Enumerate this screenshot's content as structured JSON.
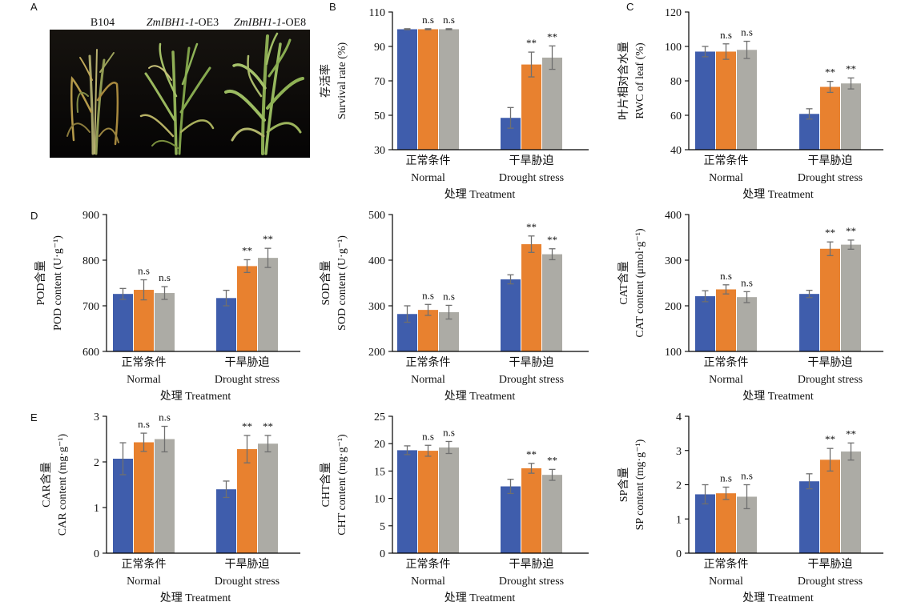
{
  "panel_labels": [
    "A",
    "B",
    "C",
    "D",
    "E"
  ],
  "photo_labels": [
    {
      "plain": "B104"
    },
    {
      "italic": "ZmIBH1-1",
      "plain": "-OE3"
    },
    {
      "italic": "ZmIBH1-1",
      "plain": "-OE8"
    }
  ],
  "colors": {
    "series": [
      "#3f5dac",
      "#e8812f",
      "#acaba5"
    ],
    "error_bar": "#6f6f6f",
    "axis": "#000000"
  },
  "chart_data": [
    {
      "type": "bar",
      "ylabel_zh": "存活率",
      "ylabel_en": "Survival rate (%)",
      "xlabel": "处理 Treatment",
      "categories": [
        {
          "zh": "正常条件",
          "en": "Normal"
        },
        {
          "zh": "干旱胁迫",
          "en": "Drought stress"
        }
      ],
      "ylim": [
        30,
        110
      ],
      "yticks": [
        30,
        50,
        70,
        90,
        110
      ],
      "series": [
        {
          "values": [
            100,
            48.5
          ],
          "errors": [
            0.3,
            6
          ]
        },
        {
          "values": [
            100,
            79.5
          ],
          "errors": [
            0.3,
            7.2
          ],
          "significance": [
            "n.s",
            "**"
          ]
        },
        {
          "values": [
            100,
            83.5
          ],
          "errors": [
            0.3,
            6.8
          ],
          "significance": [
            "n.s",
            "**"
          ]
        }
      ]
    },
    {
      "type": "bar",
      "ylabel_zh": "叶片相对含水量",
      "ylabel_en": "RWC of leaf (%)",
      "xlabel": "处理 Treatment",
      "categories": [
        {
          "zh": "正常条件",
          "en": "Normal"
        },
        {
          "zh": "干旱胁迫",
          "en": "Drought stress"
        }
      ],
      "ylim": [
        40,
        120
      ],
      "yticks": [
        40,
        60,
        80,
        100,
        120
      ],
      "series": [
        {
          "values": [
            97,
            60.8
          ],
          "errors": [
            3,
            3
          ]
        },
        {
          "values": [
            97,
            76.5
          ],
          "errors": [
            4.5,
            3.2
          ],
          "significance": [
            "n.s",
            "**"
          ]
        },
        {
          "values": [
            98,
            78.5
          ],
          "errors": [
            5,
            3.2
          ],
          "significance": [
            "n.s",
            "**"
          ]
        }
      ]
    },
    {
      "type": "bar",
      "ylabel_zh": "POD含量",
      "ylabel_en": "POD content (U·g⁻¹)",
      "xlabel": "处理 Treatment",
      "categories": [
        {
          "zh": "正常条件",
          "en": "Normal"
        },
        {
          "zh": "干旱胁迫",
          "en": "Drought stress"
        }
      ],
      "ylim": [
        600,
        900
      ],
      "yticks": [
        600,
        700,
        800,
        900
      ],
      "series": [
        {
          "values": [
            726,
            717
          ],
          "errors": [
            12,
            17
          ]
        },
        {
          "values": [
            735,
            787
          ],
          "errors": [
            22,
            14
          ],
          "significance": [
            "n.s",
            "**"
          ]
        },
        {
          "values": [
            728,
            805
          ],
          "errors": [
            14,
            21
          ],
          "significance": [
            "n.s",
            "**"
          ]
        }
      ]
    },
    {
      "type": "bar",
      "ylabel_zh": "SOD含量",
      "ylabel_en": "SOD content (U·g⁻¹)",
      "xlabel": "处理 Treatment",
      "categories": [
        {
          "zh": "正常条件",
          "en": "Normal"
        },
        {
          "zh": "干旱胁迫",
          "en": "Drought stress"
        }
      ],
      "ylim": [
        200,
        500
      ],
      "yticks": [
        200,
        300,
        400,
        500
      ],
      "series": [
        {
          "values": [
            282,
            358
          ],
          "errors": [
            18,
            10
          ]
        },
        {
          "values": [
            291,
            435
          ],
          "errors": [
            12,
            18
          ],
          "significance": [
            "n.s",
            "**"
          ]
        },
        {
          "values": [
            286,
            413
          ],
          "errors": [
            15,
            12
          ],
          "significance": [
            "n.s",
            "**"
          ]
        }
      ]
    },
    {
      "type": "bar",
      "ylabel_zh": "CAT含量",
      "ylabel_en": "CAT content (μmol·g⁻¹)",
      "xlabel": "处理 Treatment",
      "categories": [
        {
          "zh": "正常条件",
          "en": "Normal"
        },
        {
          "zh": "干旱胁迫",
          "en": "Drought stress"
        }
      ],
      "ylim": [
        100,
        400
      ],
      "yticks": [
        100,
        200,
        300,
        400
      ],
      "series": [
        {
          "values": [
            221,
            226
          ],
          "errors": [
            12,
            8
          ]
        },
        {
          "values": [
            236,
            325
          ],
          "errors": [
            10,
            15
          ],
          "significance": [
            "n.s",
            "**"
          ]
        },
        {
          "values": [
            219,
            334
          ],
          "errors": [
            12,
            10
          ],
          "significance": [
            "n.s",
            "**"
          ]
        }
      ]
    },
    {
      "type": "bar",
      "ylabel_zh": "CAR含量",
      "ylabel_en": "CAR content (mg·g⁻¹)",
      "xlabel": "处理 Treatment",
      "categories": [
        {
          "zh": "正常条件",
          "en": "Normal"
        },
        {
          "zh": "干旱胁迫",
          "en": "Drought stress"
        }
      ],
      "ylim": [
        0,
        3
      ],
      "yticks": [
        0,
        1,
        2,
        3
      ],
      "series": [
        {
          "values": [
            2.07,
            1.4
          ],
          "errors": [
            0.35,
            0.18
          ]
        },
        {
          "values": [
            2.43,
            2.28
          ],
          "errors": [
            0.2,
            0.3
          ],
          "significance": [
            "n.s",
            "**"
          ]
        },
        {
          "values": [
            2.5,
            2.4
          ],
          "errors": [
            0.28,
            0.18
          ],
          "significance": [
            "n.s",
            "**"
          ]
        }
      ]
    },
    {
      "type": "bar",
      "ylabel_zh": "CHT含量",
      "ylabel_en": "CHT content (mg·g⁻¹)",
      "xlabel": "处理 Treatment",
      "categories": [
        {
          "zh": "正常条件",
          "en": "Normal"
        },
        {
          "zh": "干旱胁迫",
          "en": "Drought stress"
        }
      ],
      "ylim": [
        0,
        25
      ],
      "yticks": [
        0,
        5,
        10,
        15,
        20,
        25
      ],
      "series": [
        {
          "values": [
            18.8,
            12.2
          ],
          "errors": [
            0.8,
            1.3
          ]
        },
        {
          "values": [
            18.7,
            15.5
          ],
          "errors": [
            1.0,
            0.9
          ],
          "significance": [
            "n.s",
            "**"
          ]
        },
        {
          "values": [
            19.3,
            14.3
          ],
          "errors": [
            1.1,
            1.0
          ],
          "significance": [
            "n.s",
            "**"
          ]
        }
      ]
    },
    {
      "type": "bar",
      "ylabel_zh": "SP含量",
      "ylabel_en": "SP content (mg·g⁻¹)",
      "xlabel": "处理 Treatment",
      "categories": [
        {
          "zh": "正常条件",
          "en": "Normal"
        },
        {
          "zh": "干旱胁迫",
          "en": "Drought stress"
        }
      ],
      "ylim": [
        0,
        4
      ],
      "yticks": [
        0,
        1,
        2,
        3,
        4
      ],
      "series": [
        {
          "values": [
            1.72,
            2.1
          ],
          "errors": [
            0.28,
            0.22
          ]
        },
        {
          "values": [
            1.75,
            2.73
          ],
          "errors": [
            0.18,
            0.33
          ],
          "significance": [
            "n.s",
            "**"
          ]
        },
        {
          "values": [
            1.65,
            2.97
          ],
          "errors": [
            0.35,
            0.25
          ],
          "significance": [
            "n.s",
            "**"
          ]
        }
      ]
    }
  ]
}
